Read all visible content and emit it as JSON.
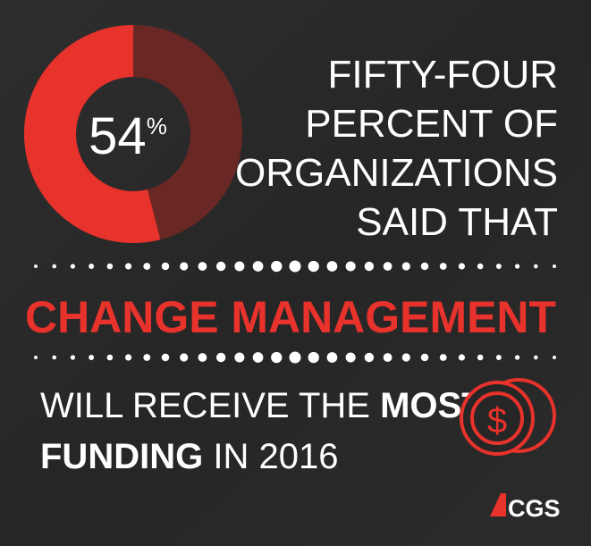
{
  "chart_data": {
    "type": "donut",
    "values": [
      54
    ],
    "value_labels": [
      "54%"
    ],
    "color": "#e8322c",
    "track_color": "#6a2825"
  },
  "headline": {
    "lines": [
      "FIFTY-FOUR",
      "PERCENT OF",
      "ORGANIZATIONS",
      "SAID THAT"
    ]
  },
  "highlight": "CHANGE MANAGEMENT",
  "footer": {
    "line1": [
      "WILL RECEIVE THE",
      "MOST"
    ],
    "line2": [
      "FUNDING",
      "IN 2016"
    ]
  },
  "logo": "CGS"
}
